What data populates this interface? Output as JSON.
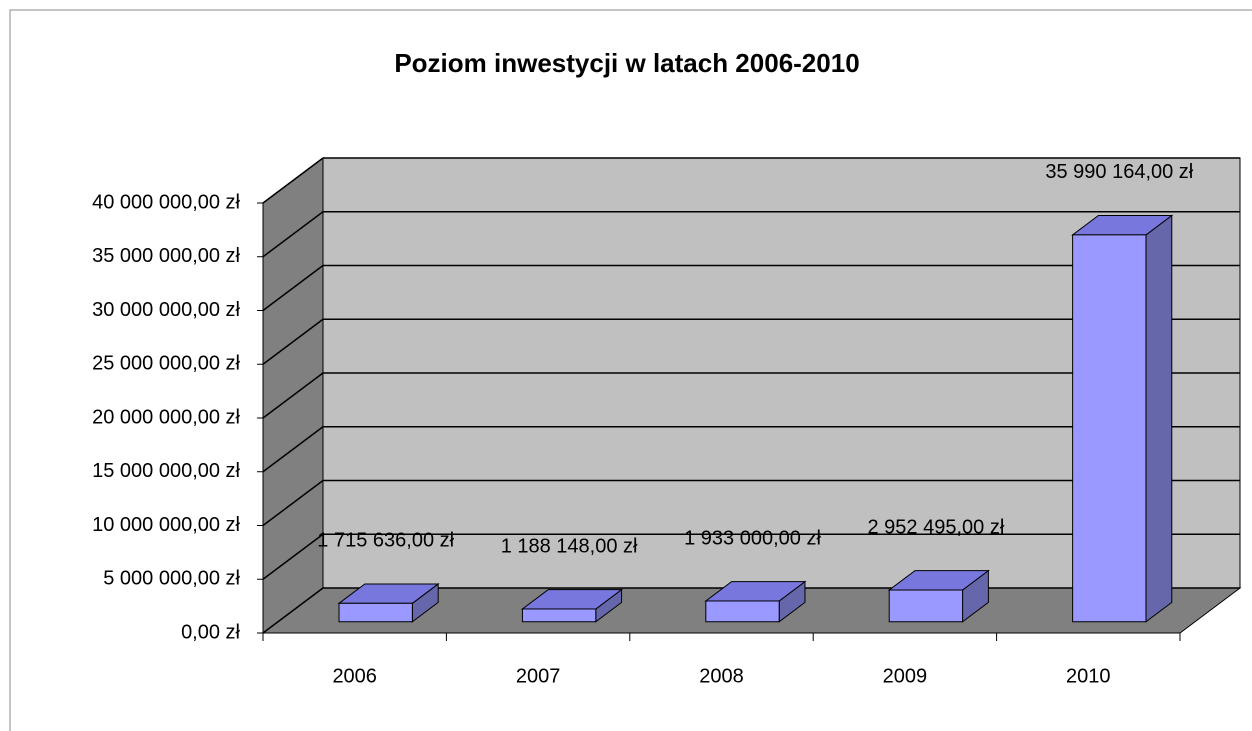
{
  "chart_data": {
    "type": "bar3d",
    "title": "Poziom inwestycji w latach 2006-2010",
    "categories": [
      "2006",
      "2007",
      "2008",
      "2009",
      "2010"
    ],
    "values": [
      1715636,
      1188148,
      1933000,
      2952495,
      35990164
    ],
    "value_labels": [
      "1 715 636,00 zł",
      "1 188 148,00 zł",
      "1 933 000,00 zł",
      "2 952 495,00 zł",
      "35 990 164,00 zł"
    ],
    "color": "#9999ff",
    "ylim": [
      0,
      40000000
    ],
    "yticks": [
      {
        "value": 0,
        "label": "0,00 zł"
      },
      {
        "value": 5000000,
        "label": "5 000 000,00 zł"
      },
      {
        "value": 10000000,
        "label": "10 000 000,00 zł"
      },
      {
        "value": 15000000,
        "label": "15 000 000,00 zł"
      },
      {
        "value": 20000000,
        "label": "20 000 000,00 zł"
      },
      {
        "value": 25000000,
        "label": "25 000 000,00 zł"
      },
      {
        "value": 30000000,
        "label": "30 000 000,00 zł"
      },
      {
        "value": 35000000,
        "label": "35 000 000,00 zł"
      },
      {
        "value": 40000000,
        "label": "40 000 000,00 zł"
      }
    ],
    "grid": true
  }
}
